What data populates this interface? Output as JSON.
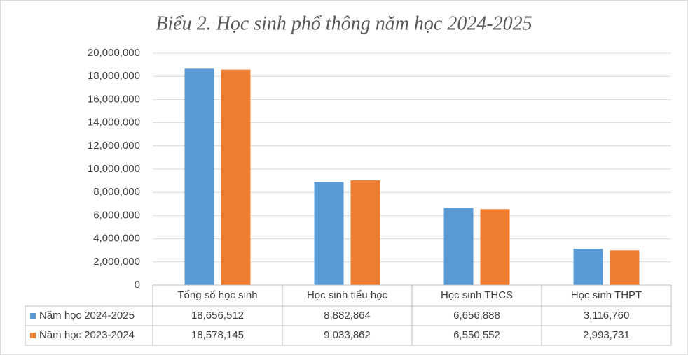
{
  "chart_data": {
    "type": "bar",
    "title": "Biểu 2. Học sinh phổ thông năm học 2024-2025",
    "categories": [
      "Tổng số học sinh",
      "Học sinh tiểu học",
      "Học sinh THCS",
      "Học sinh THPT"
    ],
    "series": [
      {
        "name": "Năm học 2024-2025",
        "color": "#5b9bd5",
        "values": [
          18656512,
          8882864,
          6656888,
          3116760
        ],
        "value_labels": [
          "18,656,512",
          "8,882,864",
          "6,656,888",
          "3,116,760"
        ]
      },
      {
        "name": "Năm học 2023-2024",
        "color": "#ed7d31",
        "values": [
          18578145,
          9033862,
          6550552,
          2993731
        ],
        "value_labels": [
          "18,578,145",
          "9,033,862",
          "6,550,552",
          "2,993,731"
        ]
      }
    ],
    "ylim": [
      0,
      20000000
    ],
    "yticks": [
      0,
      {
        "value": 2000000,
        "label": "2,000,000"
      },
      {
        "value": 4000000,
        "label": "4,000,000"
      },
      {
        "value": 6000000,
        "label": "6,000,000"
      },
      {
        "value": 8000000,
        "label": "8,000,000"
      },
      {
        "value": 10000000,
        "label": "10,000,000"
      },
      {
        "value": 12000000,
        "label": "12,000,000"
      },
      {
        "value": 14000000,
        "label": "14,000,000"
      },
      {
        "value": 16000000,
        "label": "16,000,000"
      },
      {
        "value": 18000000,
        "label": "18,000,000"
      },
      {
        "value": 20000000,
        "label": "20,000,000"
      }
    ],
    "grid": true
  }
}
